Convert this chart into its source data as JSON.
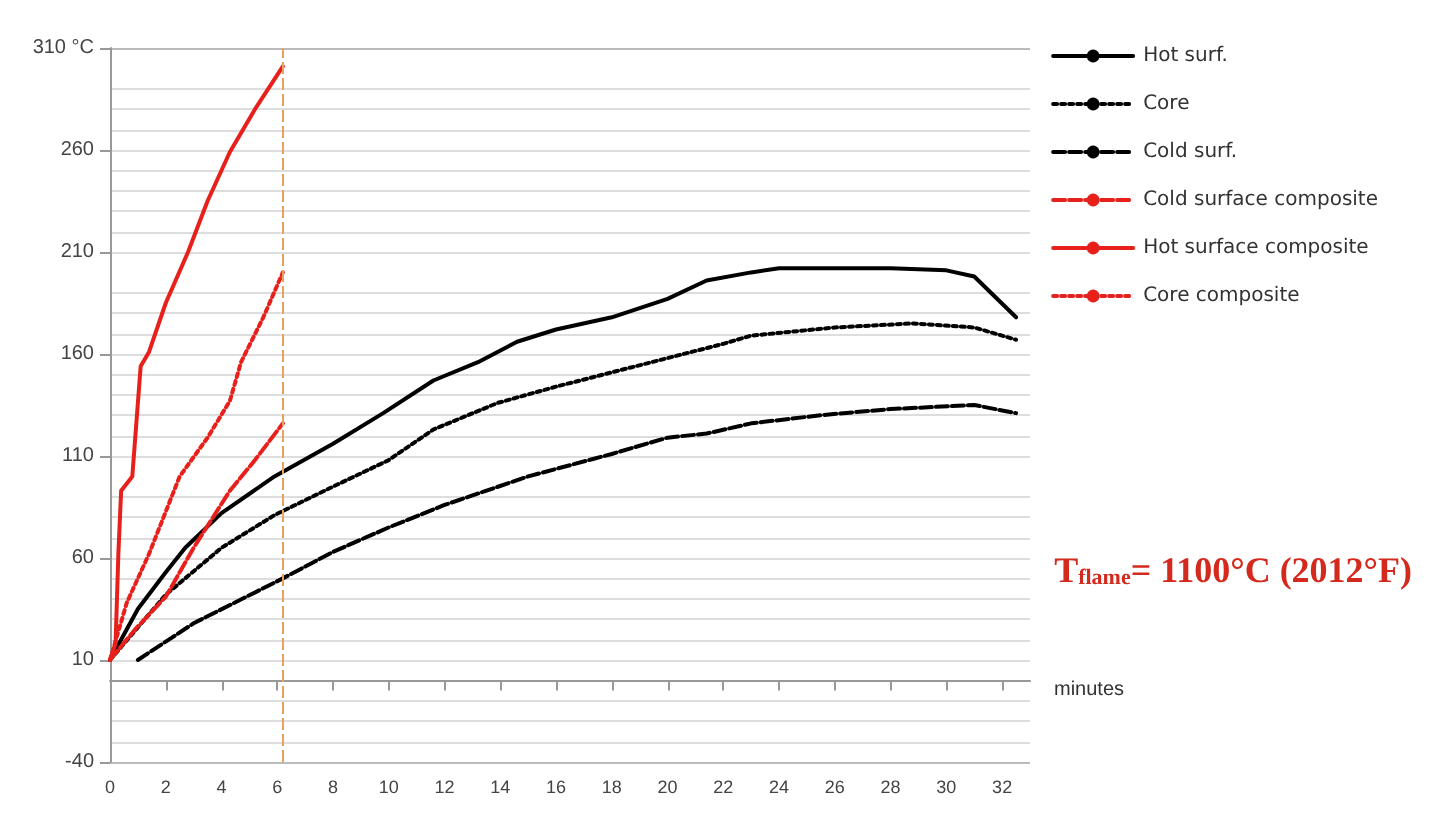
{
  "chart_data": {
    "type": "line",
    "xlabel": "minutes",
    "xlim": [
      0,
      33
    ],
    "xticks": [
      0,
      2,
      4,
      6,
      8,
      10,
      12,
      14,
      16,
      18,
      20,
      22,
      24,
      26,
      28,
      30,
      32
    ],
    "ylim": [
      -40,
      310
    ],
    "yticks": [
      -40,
      10,
      60,
      110,
      160,
      210,
      260,
      {
        "value": 310,
        "label": "310 °C"
      }
    ],
    "grid": "y",
    "legend": "top right",
    "marker": "none",
    "series": [
      {
        "name": "Hot surf.",
        "color": "#000000",
        "line_style": "solid",
        "x": [
          0,
          1,
          2,
          2.7,
          4,
          5.9,
          8,
          9.8,
          11.6,
          13.2,
          14.6,
          16,
          18,
          20,
          21.4,
          23,
          24,
          26,
          28,
          30,
          31,
          32.5
        ],
        "values": [
          10,
          35,
          53,
          65,
          82,
          100,
          116,
          131,
          147,
          156,
          166,
          172,
          178,
          187,
          196,
          200,
          202,
          202,
          202,
          201,
          198,
          178
        ]
      },
      {
        "name": "Core",
        "color": "#000000",
        "line_style": "dotted",
        "x": [
          0,
          2,
          4,
          5.9,
          8,
          10,
          11.6,
          13.9,
          16,
          18,
          20,
          22,
          23,
          26,
          28.8,
          31,
          32.5
        ],
        "values": [
          10,
          42,
          65,
          81,
          95,
          108,
          123,
          136,
          144,
          151,
          158,
          165,
          169,
          173,
          175,
          173,
          167
        ]
      },
      {
        "name": "Cold surf.",
        "color": "#000000",
        "line_style": "dashed",
        "x": [
          1,
          3,
          6.2,
          8,
          10,
          12,
          15,
          18,
          20,
          21.4,
          23,
          25.5,
          28,
          31,
          32.5
        ],
        "values": [
          10,
          28,
          50,
          63,
          75,
          86,
          100,
          111,
          119,
          121,
          126,
          130,
          133,
          135,
          131
        ]
      },
      {
        "name": "Cold surface composite",
        "color": "#e8201c",
        "line_style": "dashed",
        "x": [
          0,
          0.9,
          2,
          3,
          4.3,
          5.2,
          6.2
        ],
        "values": [
          10,
          25,
          41,
          65,
          93,
          108,
          126
        ]
      },
      {
        "name": "Hot surface composite",
        "color": "#e8201c",
        "line_style": "solid",
        "x": [
          0,
          0.2,
          0.3,
          0.4,
          0.8,
          1.1,
          1.4,
          2,
          2.8,
          3.5,
          4.3,
          5.2,
          6.2
        ],
        "values": [
          10,
          18,
          62,
          93,
          100,
          154,
          161,
          185,
          210,
          235,
          259,
          280,
          301
        ]
      },
      {
        "name": "Core composite",
        "color": "#e8201c",
        "line_style": "dotted",
        "x": [
          0,
          0.6,
          1.4,
          2.5,
          3.5,
          4.3,
          4.7,
          5.5,
          6.2
        ],
        "values": [
          10,
          38,
          62,
          100,
          119,
          137,
          156,
          178,
          200
        ]
      }
    ],
    "ref_lines": [
      {
        "axis": "x",
        "value": 6.2,
        "color": "#e8a25c",
        "line_style": "dashed"
      }
    ],
    "annotations": [
      "T$_{flame}$= 1100°C (2012°F)"
    ]
  }
}
